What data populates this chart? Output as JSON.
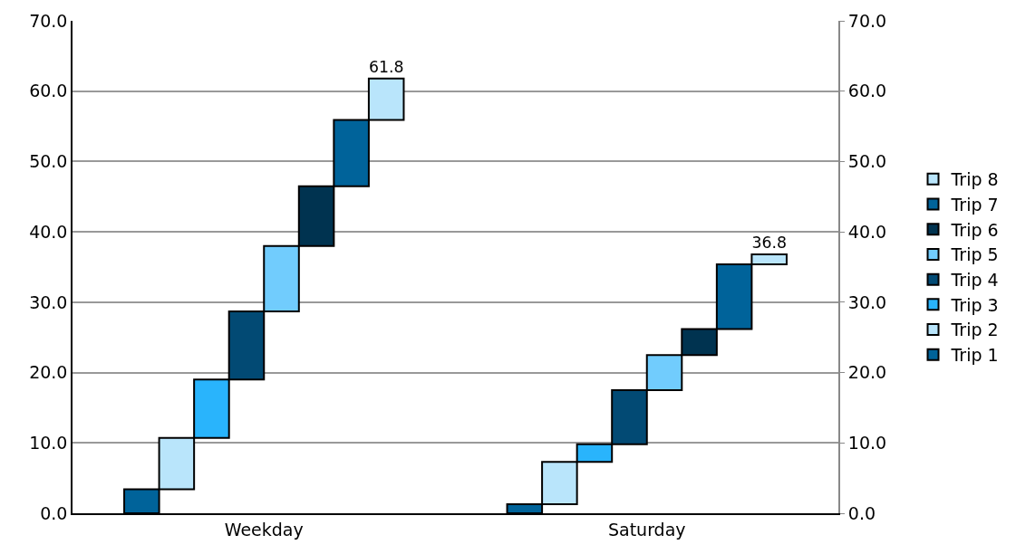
{
  "chart_data": {
    "type": "bar",
    "categories": [
      "Weekday",
      "Saturday"
    ],
    "series": [
      {
        "name": "Trip 1",
        "color": "#00639a",
        "base": [
          0,
          0
        ],
        "values": [
          3.4,
          1.3
        ]
      },
      {
        "name": "Trip 2",
        "color": "#b9e5fb",
        "base": [
          3.4,
          1.3
        ],
        "values": [
          7.3,
          6.0
        ]
      },
      {
        "name": "Trip 3",
        "color": "#29b4fc",
        "base": [
          10.7,
          7.3
        ],
        "values": [
          8.3,
          2.5
        ]
      },
      {
        "name": "Trip 4",
        "color": "#024a74",
        "base": [
          19.0,
          9.8
        ],
        "values": [
          9.7,
          7.7
        ]
      },
      {
        "name": "Trip 5",
        "color": "#71ccfd",
        "base": [
          28.7,
          17.5
        ],
        "values": [
          9.3,
          5.0
        ]
      },
      {
        "name": "Trip 6",
        "color": "#003350",
        "base": [
          38.0,
          22.5
        ],
        "values": [
          8.5,
          3.7
        ]
      },
      {
        "name": "Trip 7",
        "color": "#00639a",
        "base": [
          46.5,
          26.2
        ],
        "values": [
          9.4,
          9.2
        ]
      },
      {
        "name": "Trip 8",
        "color": "#b9e5fb",
        "base": [
          55.9,
          35.4
        ],
        "values": [
          5.9,
          1.4
        ]
      }
    ],
    "totals": [
      "61.8",
      "36.8"
    ],
    "ylim": [
      0,
      70
    ],
    "yticks": [
      {
        "value": 0,
        "label": "0.0"
      },
      {
        "value": 10,
        "label": "10.0"
      },
      {
        "value": 20,
        "label": "20.0"
      },
      {
        "value": 30,
        "label": "30.0"
      },
      {
        "value": 40,
        "label": "40.0"
      },
      {
        "value": 50,
        "label": "50.0"
      },
      {
        "value": 60,
        "label": "60.0"
      },
      {
        "value": 70,
        "label": "70.0"
      }
    ],
    "y2lim": [
      0,
      70
    ],
    "y2ticks": [
      {
        "value": 0,
        "label": "0.0"
      },
      {
        "value": 10,
        "label": "10.0"
      },
      {
        "value": 20,
        "label": "20.0"
      },
      {
        "value": 30,
        "label": "30.0"
      },
      {
        "value": 40,
        "label": "40.0"
      },
      {
        "value": 50,
        "label": "50.0"
      },
      {
        "value": 60,
        "label": "60.0"
      },
      {
        "value": 70,
        "label": "70.0"
      }
    ],
    "grid": "y",
    "legend": "right"
  }
}
